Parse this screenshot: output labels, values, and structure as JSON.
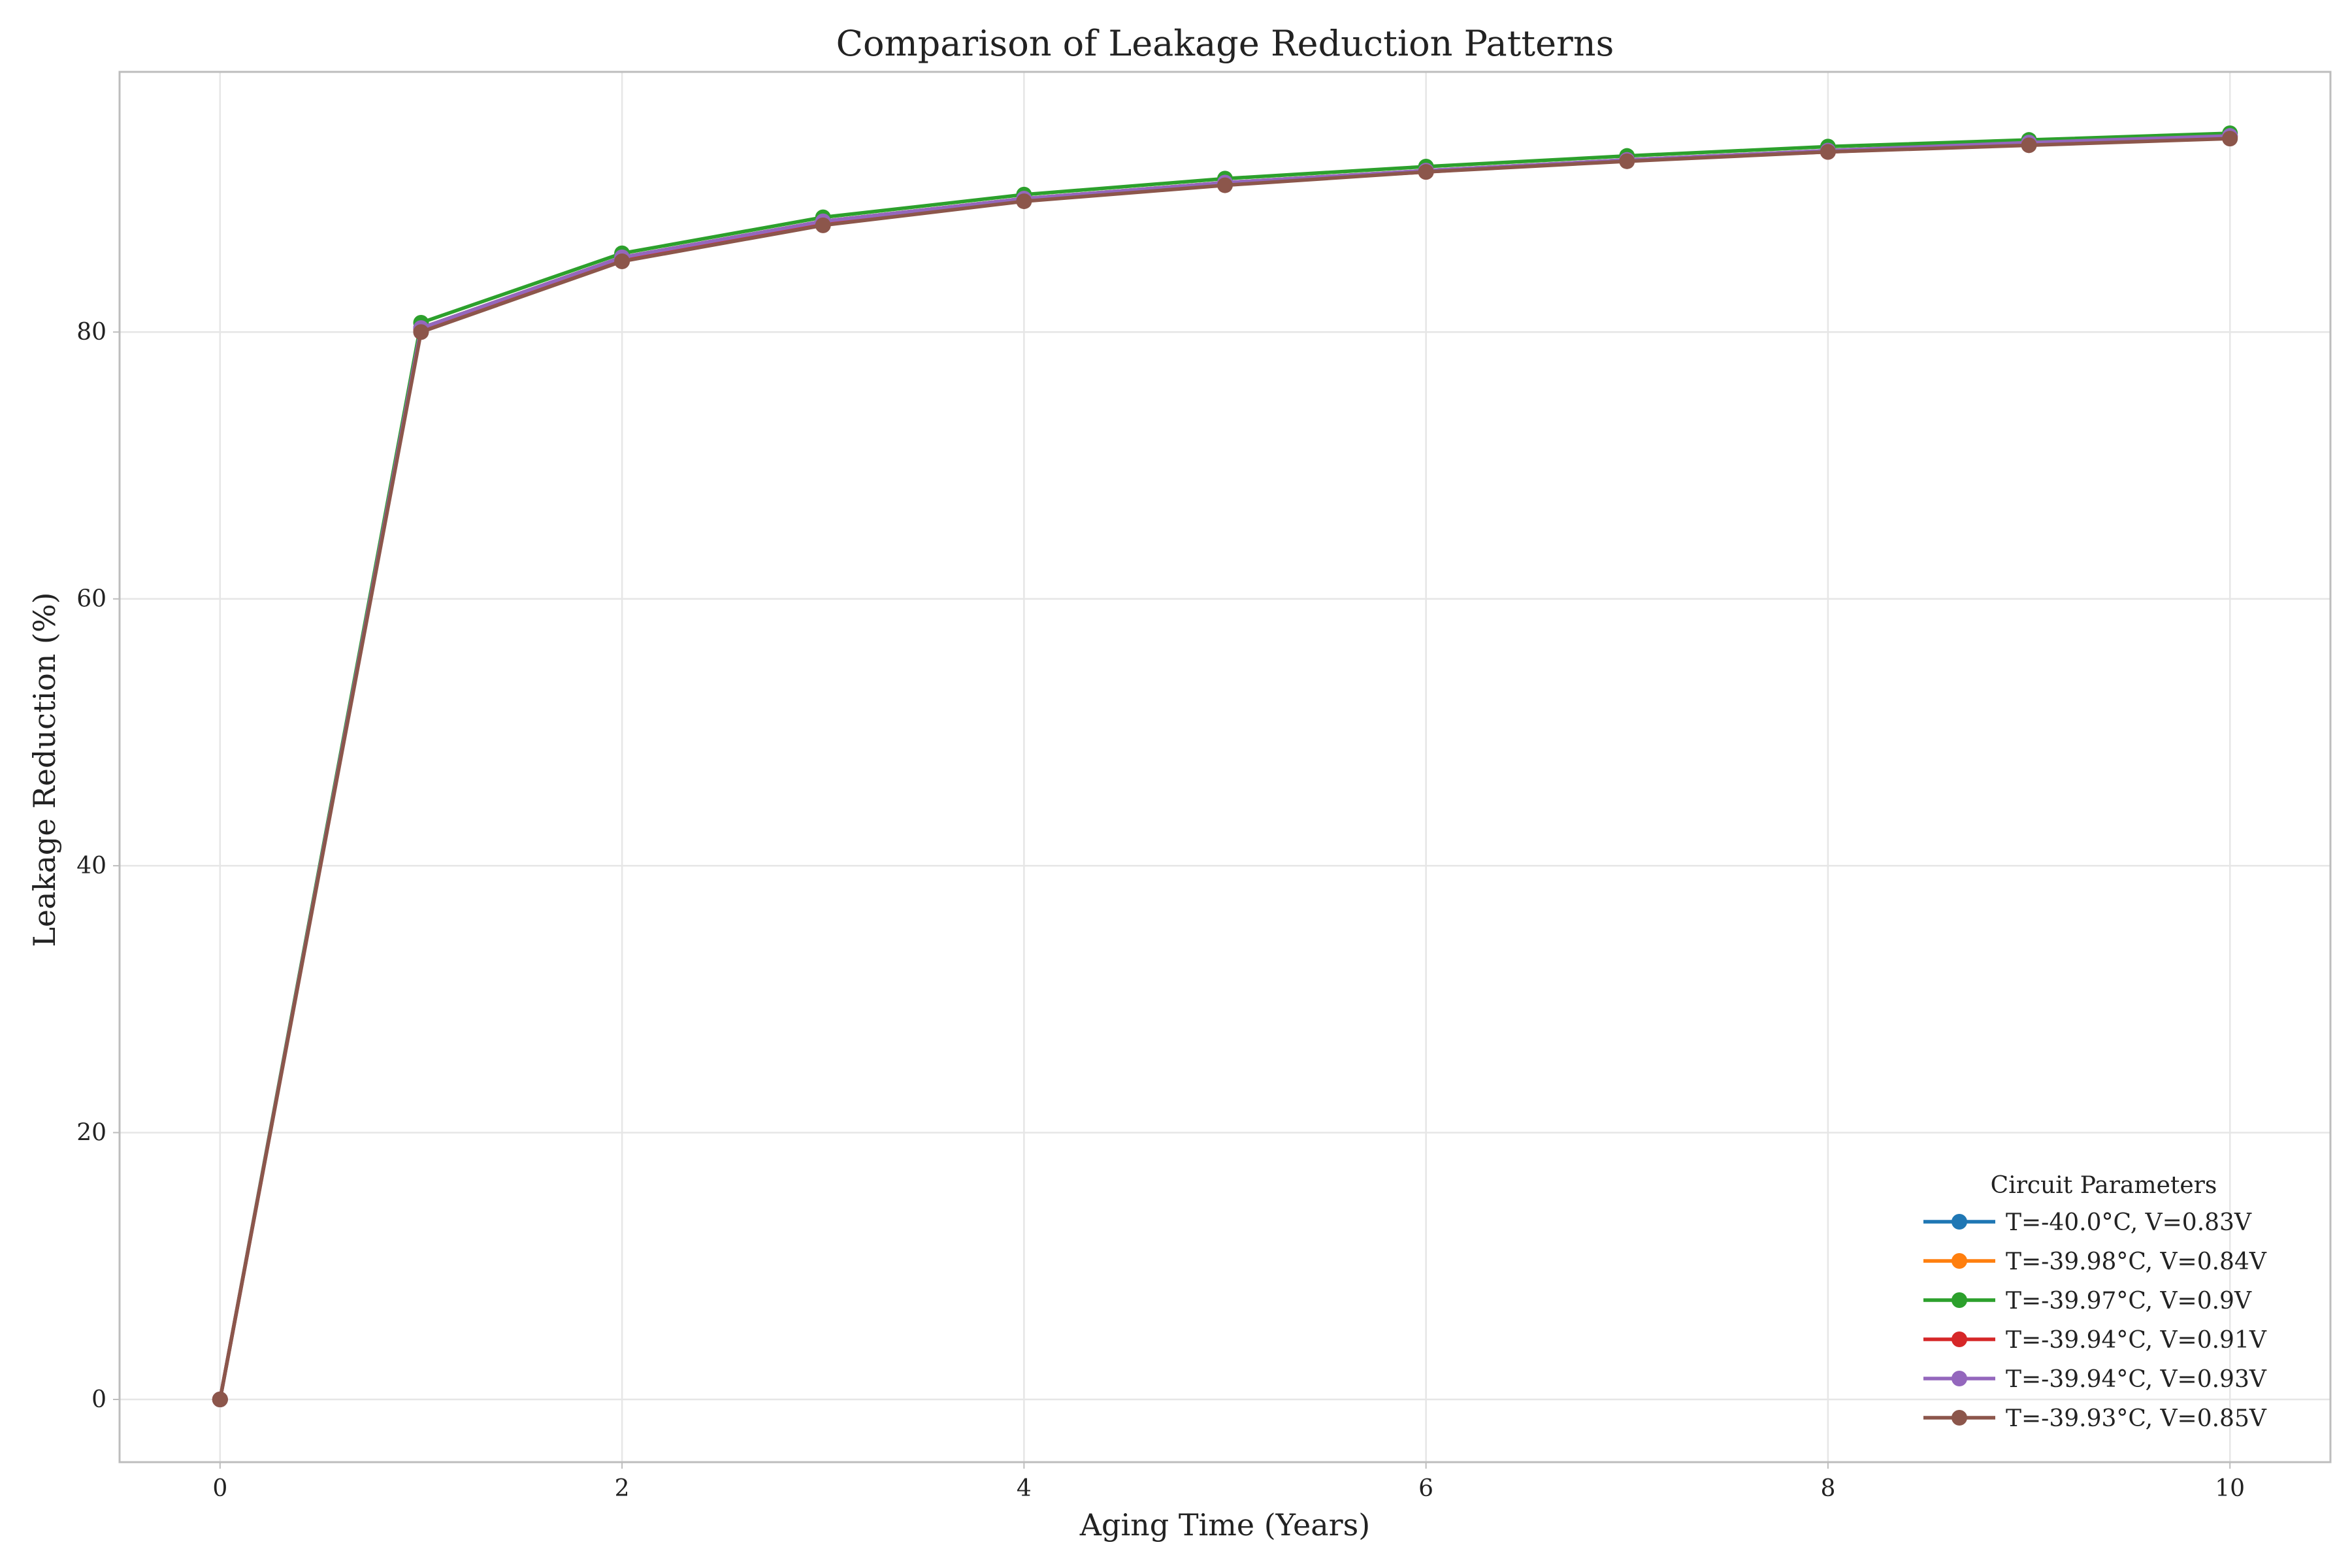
{
  "chart_data": {
    "type": "line",
    "title": "Comparison of Leakage Reduction Patterns",
    "xlabel": "Aging Time (Years)",
    "ylabel": "Leakage Reduction (%)",
    "xlim": [
      -0.5,
      10.5
    ],
    "ylim": [
      -4.7,
      99.5
    ],
    "xticks": [
      0,
      2,
      4,
      6,
      8,
      10
    ],
    "yticks": [
      0,
      20,
      40,
      60,
      80
    ],
    "grid": true,
    "legend": {
      "title": "Circuit Parameters",
      "placement": "lower-right"
    },
    "x": [
      0,
      1,
      2,
      3,
      4,
      5,
      6,
      7,
      8,
      9,
      10
    ],
    "series": [
      {
        "name": "T=-40.0°C, V=0.83V",
        "color": "#1f77b4",
        "values": [
          0,
          80.3,
          85.6,
          88.3,
          90.0,
          91.2,
          92.1,
          92.9,
          93.6,
          94.2,
          94.7
        ]
      },
      {
        "name": "T=-39.98°C, V=0.84V",
        "color": "#ff7f0e",
        "values": [
          0,
          80.3,
          85.6,
          88.3,
          90.0,
          91.2,
          92.1,
          92.9,
          93.6,
          94.2,
          94.7
        ]
      },
      {
        "name": "T=-39.97°C, V=0.9V",
        "color": "#2ca02c",
        "values": [
          0,
          80.7,
          85.9,
          88.6,
          90.3,
          91.5,
          92.4,
          93.2,
          93.9,
          94.4,
          94.9
        ]
      },
      {
        "name": "T=-39.94°C, V=0.91V",
        "color": "#d62728",
        "values": [
          0,
          80.2,
          85.5,
          88.2,
          89.9,
          91.1,
          92.0,
          92.9,
          93.5,
          94.1,
          94.6
        ]
      },
      {
        "name": "T=-39.94°C, V=0.93V",
        "color": "#9467bd",
        "values": [
          0,
          80.3,
          85.6,
          88.3,
          90.0,
          91.2,
          92.1,
          92.9,
          93.6,
          94.2,
          94.7
        ]
      },
      {
        "name": "T=-39.93°C, V=0.85V",
        "color": "#8c564b",
        "values": [
          0,
          80.0,
          85.3,
          88.0,
          89.8,
          91.0,
          92.0,
          92.8,
          93.5,
          94.0,
          94.5
        ]
      }
    ]
  }
}
